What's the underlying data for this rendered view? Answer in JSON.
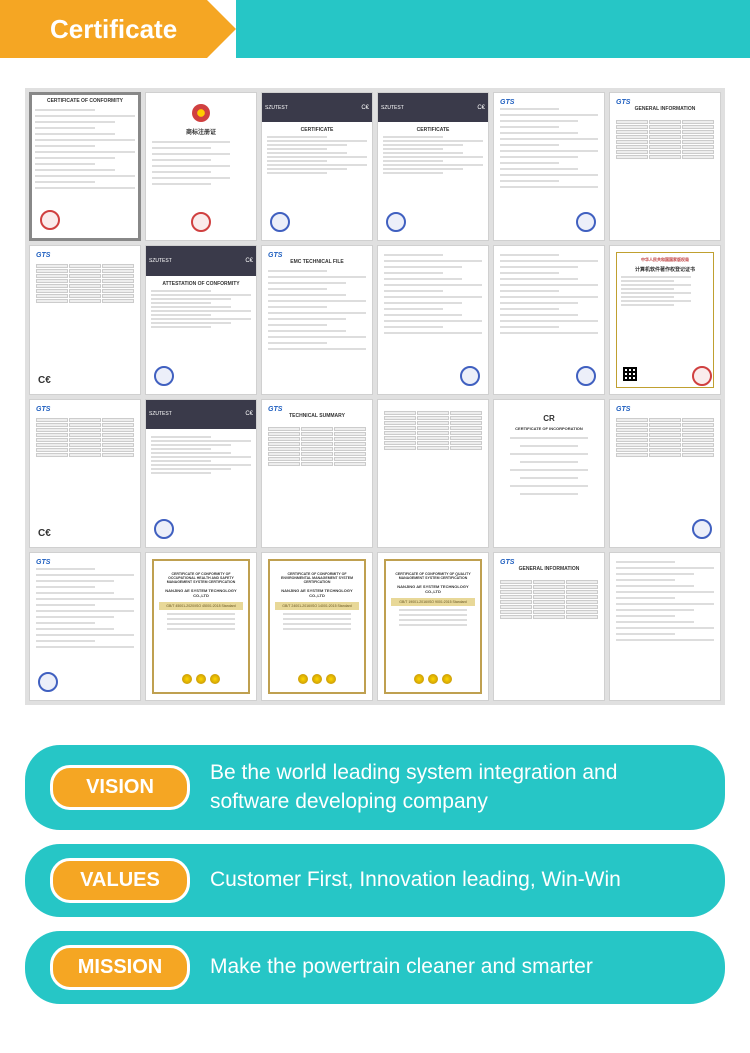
{
  "header": {
    "title": "Certificate",
    "orange_color": "#f5a623",
    "teal_color": "#26c6c6",
    "text_color": "#ffffff"
  },
  "certificates": {
    "grid_cols": 6,
    "grid_rows": 4,
    "items": [
      {
        "type": "conformity",
        "title": "CERTIFICATE OF CONFORMITY",
        "stamp": "red",
        "stamp_pos": "bottom-left",
        "framed": true
      },
      {
        "type": "china",
        "title": "商标注册证",
        "has_emblem": true,
        "stamp": "red",
        "stamp_pos": "bottom-center"
      },
      {
        "type": "szutest",
        "title": "SZUTEST",
        "subtitle": "CERTIFICATE",
        "dark_header": true,
        "stamp": "blue",
        "stamp_pos": "bottom-left",
        "ce": true
      },
      {
        "type": "szutest",
        "title": "SZUTEST",
        "subtitle": "CERTIFICATE",
        "dark_header": true,
        "stamp": "blue",
        "stamp_pos": "bottom-left",
        "ce": true
      },
      {
        "type": "gts",
        "logo": "GTS",
        "stamp": "blue",
        "stamp_pos": "bottom-right"
      },
      {
        "type": "gts",
        "logo": "GTS",
        "title": "GENERAL INFORMATION",
        "has_table": true
      },
      {
        "type": "gts",
        "logo": "GTS",
        "ce": true,
        "has_table": true
      },
      {
        "type": "szutest",
        "title": "SZUTEST",
        "subtitle": "ATTESTATION OF CONFORMITY",
        "dark_header": true,
        "stamp": "blue",
        "stamp_pos": "bottom-left",
        "ce": true
      },
      {
        "type": "gts",
        "logo": "GTS",
        "title": "EMC TECHNICAL FILE"
      },
      {
        "type": "plain",
        "stamp": "blue",
        "stamp_pos": "bottom-right"
      },
      {
        "type": "plain",
        "stamp": "blue",
        "stamp_pos": "bottom-right"
      },
      {
        "type": "china-cert",
        "title": "中华人民共和国国家版权局",
        "subtitle": "计算机软件著作权登记证书",
        "stamp": "red",
        "stamp_pos": "bottom-right",
        "has_qr": true,
        "ornate": false,
        "bordered": true
      },
      {
        "type": "gts",
        "logo": "GTS",
        "ce": true,
        "has_table": true
      },
      {
        "type": "szutest",
        "title": "SZUTEST",
        "dark_header": true,
        "stamp": "blue",
        "stamp_pos": "bottom-left",
        "ce": true
      },
      {
        "type": "gts",
        "logo": "GTS",
        "title": "TECHNICAL SUMMARY",
        "has_table": true
      },
      {
        "type": "plain",
        "has_table": true
      },
      {
        "type": "cr",
        "title": "CR",
        "subtitle": "CERTIFICATE OF INCORPORATION"
      },
      {
        "type": "gts",
        "logo": "GTS",
        "has_table": true,
        "stamp": "blue",
        "stamp_pos": "bottom-right"
      },
      {
        "type": "gts",
        "logo": "GTS",
        "stamp": "blue",
        "stamp_pos": "bottom-left"
      },
      {
        "type": "iso",
        "title": "CERTIFICATE OF CONFORMITY OF OCCUPATIONAL HEALTH AND SAFETY MANAGEMENT SYSTEM CERTIFICATION",
        "company": "NANJING AE SYSTEM TECHNOLOGY CO.,LTD",
        "standard": "GB/T 45001-2020/ISO 45001:2018 Standard",
        "ornate": true,
        "has_medals": true
      },
      {
        "type": "iso",
        "title": "CERTIFICATE OF CONFORMITY OF ENVIRONMENTAL MANAGEMENT SYSTEM CERTIFICATION",
        "company": "NANJING AE SYSTEM TECHNOLOGY CO.,LTD",
        "standard": "GB/T 24001-2016/ISO 14001:2015 Standard",
        "ornate": true,
        "has_medals": true
      },
      {
        "type": "iso",
        "title": "CERTIFICATE OF CONFORMITY OF QUALITY MANAGEMENT SYSTEM CERTIFICATION",
        "company": "NANJING AE SYSTEM TECHNOLOGY CO.,LTD",
        "standard": "GB/T 19001-2016/ISO 9001:2015 Standard",
        "ornate": true,
        "has_medals": true
      },
      {
        "type": "gts",
        "logo": "GTS",
        "title": "GENERAL INFORMATION",
        "has_table": true
      },
      {
        "type": "plain"
      }
    ]
  },
  "panels": [
    {
      "badge": "VISION",
      "text": "Be the world leading system integration and software developing company"
    },
    {
      "badge": "VALUES",
      "text": "Customer First, Innovation leading, Win-Win"
    },
    {
      "badge": "MISSION",
      "text": "Make the powertrain cleaner and smarter"
    }
  ],
  "colors": {
    "teal": "#26c6c6",
    "orange": "#f5a623",
    "white": "#ffffff",
    "grid_bg": "#e0e0e0",
    "cert_border": "#d0d0d0"
  }
}
